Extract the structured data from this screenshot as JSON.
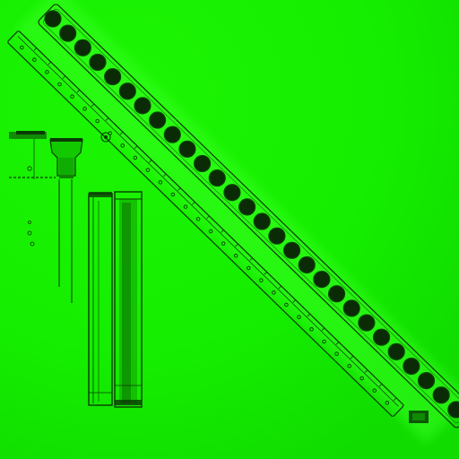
{
  "image": {
    "kind": "texture-map",
    "colors": {
      "background": "#16f000",
      "background_dark": "#0fd800",
      "glow": "#36ff1e",
      "line": "#0a3a04",
      "dot_fill": "#0b2a06",
      "dot_stroke": "#094a03",
      "slot_fill": "#11b400",
      "strip_inner": "#18f200"
    },
    "dots_count": 28,
    "rail_holes_count": 30,
    "rail_notch_count": 26
  }
}
